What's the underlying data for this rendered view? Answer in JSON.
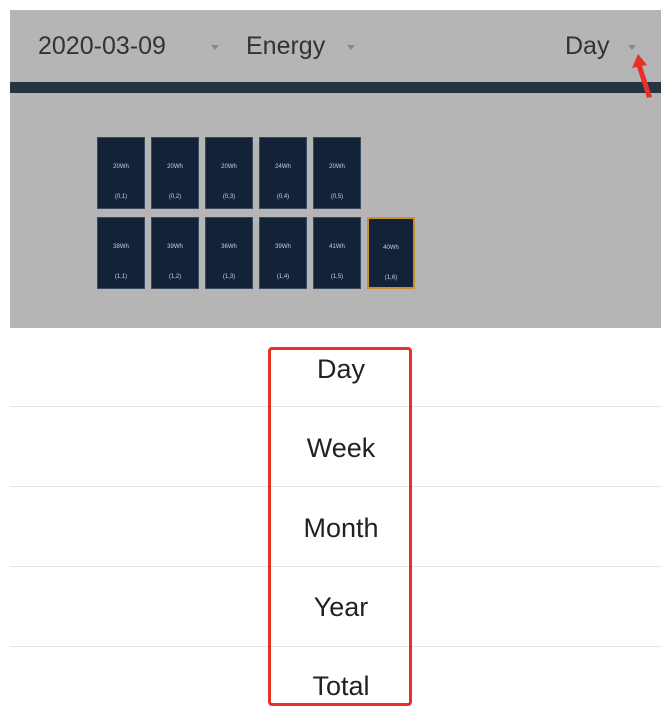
{
  "header": {
    "date": "2020-03-09",
    "metric": "Energy",
    "period": "Day"
  },
  "panels": [
    [
      {
        "energy": "20Wh",
        "label": "(0,1)"
      },
      {
        "energy": "20Wh",
        "label": "(0,2)"
      },
      {
        "energy": "20Wh",
        "label": "(0,3)"
      },
      {
        "energy": "24Wh",
        "label": "(0,4)"
      },
      {
        "energy": "20Wh",
        "label": "(0,5)"
      }
    ],
    [
      {
        "energy": "38Wh",
        "label": "(1,1)"
      },
      {
        "energy": "39Wh",
        "label": "(1,2)"
      },
      {
        "energy": "36Wh",
        "label": "(1,3)"
      },
      {
        "energy": "39Wh",
        "label": "(1,4)"
      },
      {
        "energy": "41Wh",
        "label": "(1,5)"
      },
      {
        "energy": "40Wh",
        "label": "(1,6)"
      }
    ]
  ],
  "picker": {
    "options": [
      "Day",
      "Week",
      "Month",
      "Year",
      "Total"
    ]
  }
}
